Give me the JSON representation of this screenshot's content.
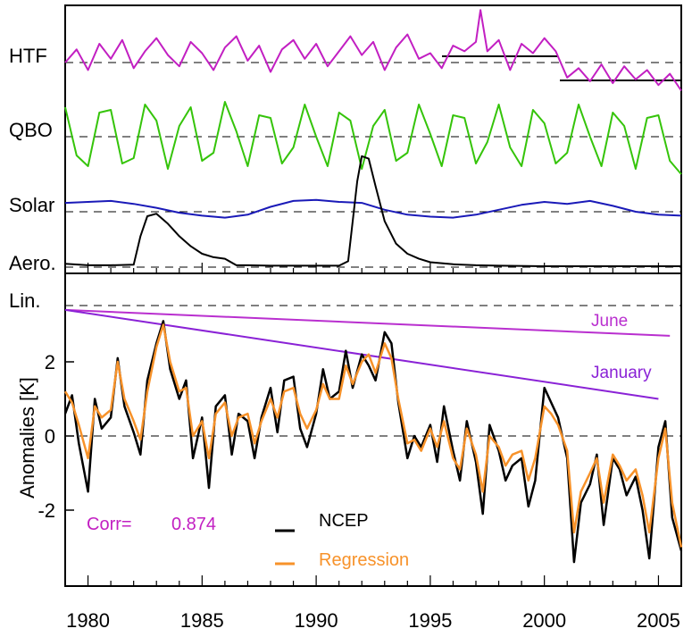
{
  "chart_data": [
    {
      "type": "line",
      "panel": "upper",
      "title": "",
      "xlim": [
        1979,
        2006
      ],
      "series": [
        {
          "name": "HTF",
          "color": "#c21fc2",
          "x": [
            1979.0,
            1979.5,
            1980.0,
            1980.5,
            1981.0,
            1981.5,
            1982.0,
            1982.5,
            1983.0,
            1983.5,
            1984.0,
            1984.5,
            1985.0,
            1985.5,
            1986.0,
            1986.5,
            1987.0,
            1987.5,
            1988.0,
            1988.5,
            1989.0,
            1989.5,
            1990.0,
            1990.5,
            1991.0,
            1991.5,
            1992.0,
            1992.5,
            1993.0,
            1993.5,
            1994.0,
            1994.5,
            1995.0,
            1995.5,
            1996.0,
            1996.5,
            1997.0,
            1997.2,
            1997.5,
            1998.0,
            1998.5,
            1999.0,
            1999.5,
            2000.0,
            2000.5,
            2001.0,
            2001.5,
            2002.0,
            2002.5,
            2003.0,
            2003.5,
            2004.0,
            2004.5,
            2005.0,
            2005.5,
            2006.0
          ],
          "y": [
            0.0,
            0.35,
            -0.2,
            0.5,
            0.1,
            0.6,
            -0.15,
            0.3,
            0.65,
            0.2,
            -0.1,
            0.55,
            0.25,
            -0.2,
            0.4,
            0.7,
            0.05,
            0.45,
            -0.25,
            0.35,
            0.6,
            0.1,
            0.5,
            -0.1,
            0.3,
            0.7,
            0.2,
            0.55,
            -0.2,
            0.4,
            0.75,
            0.1,
            0.25,
            -0.15,
            0.45,
            0.3,
            0.55,
            1.4,
            0.3,
            0.6,
            -0.2,
            0.5,
            0.25,
            0.65,
            0.3,
            -0.4,
            -0.15,
            -0.5,
            -0.05,
            -0.55,
            -0.1,
            -0.45,
            -0.2,
            -0.6,
            -0.3,
            -0.75
          ]
        },
        {
          "name": "QBO",
          "color": "#35c40a",
          "x": [
            1979.0,
            1979.5,
            1980.0,
            1980.5,
            1981.0,
            1981.5,
            1982.0,
            1982.5,
            1983.0,
            1983.5,
            1984.0,
            1984.5,
            1985.0,
            1985.5,
            1986.0,
            1986.5,
            1987.0,
            1987.5,
            1988.0,
            1988.5,
            1989.0,
            1989.5,
            1990.0,
            1990.5,
            1991.0,
            1991.5,
            1992.0,
            1992.5,
            1993.0,
            1993.5,
            1994.0,
            1994.5,
            1995.0,
            1995.5,
            1996.0,
            1996.5,
            1997.0,
            1997.5,
            1998.0,
            1998.5,
            1999.0,
            1999.5,
            2000.0,
            2000.5,
            2001.0,
            2001.5,
            2002.0,
            2002.5,
            2003.0,
            2003.5,
            2004.0,
            2004.5,
            2005.0,
            2005.5,
            2006.0
          ],
          "y": [
            0.55,
            -0.35,
            -0.55,
            0.45,
            0.5,
            -0.5,
            -0.4,
            0.6,
            0.3,
            -0.6,
            0.2,
            0.55,
            -0.45,
            -0.3,
            0.65,
            0.1,
            -0.55,
            0.4,
            0.35,
            -0.5,
            -0.2,
            0.6,
            0.0,
            -0.55,
            0.45,
            0.3,
            -0.6,
            0.2,
            0.5,
            -0.45,
            -0.3,
            0.6,
            0.05,
            -0.55,
            0.4,
            0.35,
            -0.5,
            -0.1,
            0.6,
            -0.2,
            -0.55,
            0.5,
            0.25,
            -0.5,
            -0.3,
            0.6,
            0.0,
            -0.55,
            0.45,
            0.2,
            -0.6,
            0.35,
            0.4,
            -0.45,
            -0.7
          ]
        },
        {
          "name": "Solar",
          "color": "#1a1ab8",
          "x": [
            1979.0,
            1980.0,
            1981.0,
            1982.0,
            1983.0,
            1984.0,
            1985.0,
            1986.0,
            1987.0,
            1988.0,
            1989.0,
            1990.0,
            1991.0,
            1992.0,
            1993.0,
            1994.0,
            1995.0,
            1996.0,
            1997.0,
            1998.0,
            1999.0,
            2000.0,
            2001.0,
            2002.0,
            2003.0,
            2004.0,
            2005.0,
            2006.0
          ],
          "y": [
            0.45,
            0.5,
            0.55,
            0.4,
            0.2,
            -0.05,
            -0.2,
            -0.3,
            -0.15,
            0.25,
            0.55,
            0.6,
            0.5,
            0.45,
            0.1,
            -0.15,
            -0.25,
            -0.3,
            -0.15,
            0.1,
            0.35,
            0.5,
            0.4,
            0.55,
            0.3,
            0.0,
            -0.15,
            -0.2
          ]
        },
        {
          "name": "Aero.",
          "color": "#000000",
          "x": [
            1979.0,
            1980.0,
            1981.0,
            1982.0,
            1982.3,
            1982.6,
            1983.0,
            1983.5,
            1984.0,
            1984.5,
            1985.0,
            1985.5,
            1986.0,
            1986.5,
            1987.0,
            1988.0,
            1989.0,
            1990.0,
            1991.0,
            1991.4,
            1991.6,
            1991.8,
            1992.0,
            1992.3,
            1992.6,
            1993.0,
            1993.5,
            1994.0,
            1994.5,
            1995.0,
            1996.0,
            1997.0,
            1998.0,
            2000.0,
            2002.0,
            2004.0,
            2006.0
          ],
          "y": [
            0.05,
            0.02,
            0.02,
            0.03,
            0.6,
            1.0,
            1.05,
            0.85,
            0.6,
            0.4,
            0.25,
            0.18,
            0.15,
            0.02,
            0.02,
            0.01,
            0.01,
            0.01,
            0.01,
            0.1,
            0.9,
            1.7,
            2.2,
            2.15,
            1.6,
            0.9,
            0.45,
            0.25,
            0.15,
            0.08,
            0.04,
            0.02,
            0.01,
            0.0,
            0.0,
            0.0,
            0.0
          ]
        }
      ]
    },
    {
      "type": "line",
      "panel": "lower",
      "title": "",
      "xlabel": "",
      "ylabel": "Anomalies [K]",
      "xlim": [
        1979,
        2006
      ],
      "ylim": [
        -3.6,
        4.3
      ],
      "xticks": [
        1980,
        1985,
        1990,
        1995,
        2000,
        2005
      ],
      "yticks": [
        -2,
        0,
        2
      ],
      "series": [
        {
          "name": "NCEP",
          "color": "#000000",
          "x": [
            1979.0,
            1979.3,
            1979.6,
            1980.0,
            1980.3,
            1980.6,
            1981.0,
            1981.3,
            1981.6,
            1982.0,
            1982.3,
            1982.6,
            1983.0,
            1983.3,
            1983.6,
            1984.0,
            1984.3,
            1984.6,
            1985.0,
            1985.3,
            1985.6,
            1986.0,
            1986.3,
            1986.6,
            1987.0,
            1987.3,
            1987.6,
            1988.0,
            1988.3,
            1988.6,
            1989.0,
            1989.3,
            1989.6,
            1990.0,
            1990.3,
            1990.6,
            1991.0,
            1991.3,
            1991.6,
            1992.0,
            1992.3,
            1992.6,
            1993.0,
            1993.3,
            1993.6,
            1994.0,
            1994.3,
            1994.6,
            1995.0,
            1995.3,
            1995.6,
            1996.0,
            1996.3,
            1996.6,
            1997.0,
            1997.3,
            1997.6,
            1998.0,
            1998.3,
            1998.6,
            1999.0,
            1999.3,
            1999.6,
            2000.0,
            2000.3,
            2000.6,
            2001.0,
            2001.3,
            2001.6,
            2002.0,
            2002.3,
            2002.6,
            2003.0,
            2003.3,
            2003.6,
            2004.0,
            2004.3,
            2004.6,
            2005.0,
            2005.3,
            2005.6,
            2006.0
          ],
          "y": [
            0.6,
            1.1,
            -0.2,
            -1.5,
            1.0,
            0.2,
            0.5,
            2.1,
            0.8,
            0.1,
            -0.5,
            1.5,
            2.5,
            3.1,
            1.8,
            1.0,
            1.5,
            -0.6,
            0.5,
            -1.4,
            0.8,
            1.1,
            -0.5,
            0.6,
            0.4,
            -0.6,
            0.5,
            1.3,
            0.1,
            1.5,
            1.6,
            0.2,
            -0.3,
            0.6,
            1.8,
            1.0,
            1.2,
            2.3,
            1.3,
            2.2,
            1.9,
            1.5,
            2.8,
            2.5,
            0.9,
            -0.6,
            0.0,
            -0.3,
            0.3,
            -0.7,
            0.8,
            -0.4,
            -1.2,
            0.4,
            -0.7,
            -2.1,
            0.3,
            -0.4,
            -1.2,
            -0.8,
            -0.6,
            -1.9,
            -1.2,
            1.3,
            0.9,
            0.5,
            -0.6,
            -3.4,
            -1.8,
            -1.3,
            -0.5,
            -2.4,
            -0.6,
            -0.9,
            -1.6,
            -1.1,
            -2.0,
            -3.3,
            -0.3,
            0.4,
            -2.2,
            -3.1
          ]
        },
        {
          "name": "Regression",
          "color": "#f7922a",
          "x": [
            1979.0,
            1979.3,
            1979.6,
            1980.0,
            1980.3,
            1980.6,
            1981.0,
            1981.3,
            1981.6,
            1982.0,
            1982.3,
            1982.6,
            1983.0,
            1983.3,
            1983.6,
            1984.0,
            1984.3,
            1984.6,
            1985.0,
            1985.3,
            1985.6,
            1986.0,
            1986.3,
            1986.6,
            1987.0,
            1987.3,
            1987.6,
            1988.0,
            1988.3,
            1988.6,
            1989.0,
            1989.3,
            1989.6,
            1990.0,
            1990.3,
            1990.6,
            1991.0,
            1991.3,
            1991.6,
            1992.0,
            1992.3,
            1992.6,
            1993.0,
            1993.3,
            1993.6,
            1994.0,
            1994.3,
            1994.6,
            1995.0,
            1995.3,
            1995.6,
            1996.0,
            1996.3,
            1996.6,
            1997.0,
            1997.3,
            1997.6,
            1998.0,
            1998.3,
            1998.6,
            1999.0,
            1999.3,
            1999.6,
            2000.0,
            2000.3,
            2000.6,
            2001.0,
            2001.3,
            2001.6,
            2002.0,
            2002.3,
            2002.6,
            2003.0,
            2003.3,
            2003.6,
            2004.0,
            2004.3,
            2004.6,
            2005.0,
            2005.3,
            2005.6,
            2006.0
          ],
          "y": [
            1.2,
            0.9,
            0.3,
            -0.6,
            0.8,
            0.5,
            0.7,
            2.0,
            1.0,
            0.4,
            -0.1,
            1.2,
            2.4,
            3.0,
            2.0,
            1.2,
            1.3,
            0.0,
            0.4,
            -0.6,
            0.6,
            0.9,
            0.0,
            0.5,
            0.6,
            -0.2,
            0.4,
            1.0,
            0.5,
            1.2,
            1.3,
            0.6,
            0.2,
            0.7,
            1.4,
            1.0,
            1.0,
            1.9,
            1.4,
            2.0,
            2.2,
            1.7,
            2.5,
            2.1,
            1.0,
            -0.2,
            -0.1,
            -0.4,
            0.2,
            -0.3,
            0.4,
            -0.6,
            -0.9,
            0.2,
            -0.5,
            -1.5,
            0.0,
            -0.3,
            -0.8,
            -0.5,
            -0.4,
            -1.2,
            -0.6,
            0.8,
            0.6,
            0.3,
            -0.4,
            -2.6,
            -1.5,
            -1.0,
            -0.6,
            -1.8,
            -0.5,
            -0.8,
            -1.2,
            -0.9,
            -1.6,
            -2.6,
            -0.6,
            0.2,
            -1.8,
            -3.0
          ]
        },
        {
          "name": "June",
          "color": "#b92fcf",
          "x": [
            1979.0,
            2005.5
          ],
          "y": [
            3.4,
            2.7
          ]
        },
        {
          "name": "January",
          "color": "#8a22d6",
          "x": [
            1979.0,
            2005.0
          ],
          "y": [
            3.4,
            1.0
          ]
        }
      ]
    }
  ],
  "panel_labels": {
    "htf": "HTF",
    "qbo": "QBO",
    "solar": "Solar",
    "aero": "Aero.",
    "lin": "Lin."
  },
  "annotations": {
    "corr_label": "Corr=",
    "corr_value": "0.874",
    "june": "June",
    "january": "January"
  },
  "legend": {
    "ncep": "NCEP",
    "regression": "Regression"
  },
  "axis": {
    "ylabel": "Anomalies [K]"
  },
  "colors": {
    "htf": "#c21fc2",
    "qbo": "#35c40a",
    "solar": "#1a1ab8",
    "aero": "#000000",
    "ncep": "#000000",
    "regression": "#f7922a",
    "june": "#b92fcf",
    "january": "#8a22d6",
    "corr": "#c21fc2"
  }
}
